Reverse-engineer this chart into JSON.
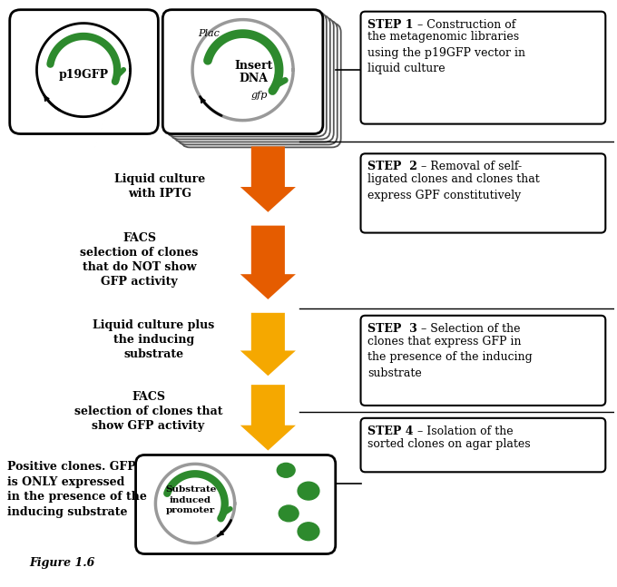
{
  "bg_color": "#ffffff",
  "green_color": "#2d8a2d",
  "orange_color": "#e55c00",
  "yellow_color": "#f5a800",
  "gray_color": "#aaaaaa",
  "plasmid_label": "p19GFP",
  "insert_label": "Insert\nDNA",
  "plac_label": "Plac",
  "gfp_label": "gfp",
  "sub_ind_label": "Substrate\ninduced\npromoter",
  "step1_bold": "STEP 1",
  "step1_rest": " – Construction of\nthe metagenomic libraries\nusing the p19GFP vector in\nliquid culture",
  "step2_bold": "STEP  2",
  "step2_rest": " – Removal of self-\nligated clones and clones that\nexpress GPF constitutively",
  "step3_bold": "STEP  3",
  "step3_rest": " – Selection of the\nclones that express GFP in\nthe presence of the inducing\nsubstrate",
  "step4_bold": "STEP 4",
  "step4_rest": " – Isolation of the\nsorted clones on agar plates",
  "lbl1": "Liquid culture\nwith IPTG",
  "lbl2": "FACS\nselection of clones\nthat do NOT show\nGFP activity",
  "lbl3": "Liquid culture plus\nthe inducing\nsubstrate",
  "lbl4": "FACS\nselection of clones that\nshow GFP activity",
  "lbl5": "Positive clones. GFP\nis ONLY expressed\nin the presence of the\ninducing substrate",
  "figure_caption": "Figure 1.6"
}
